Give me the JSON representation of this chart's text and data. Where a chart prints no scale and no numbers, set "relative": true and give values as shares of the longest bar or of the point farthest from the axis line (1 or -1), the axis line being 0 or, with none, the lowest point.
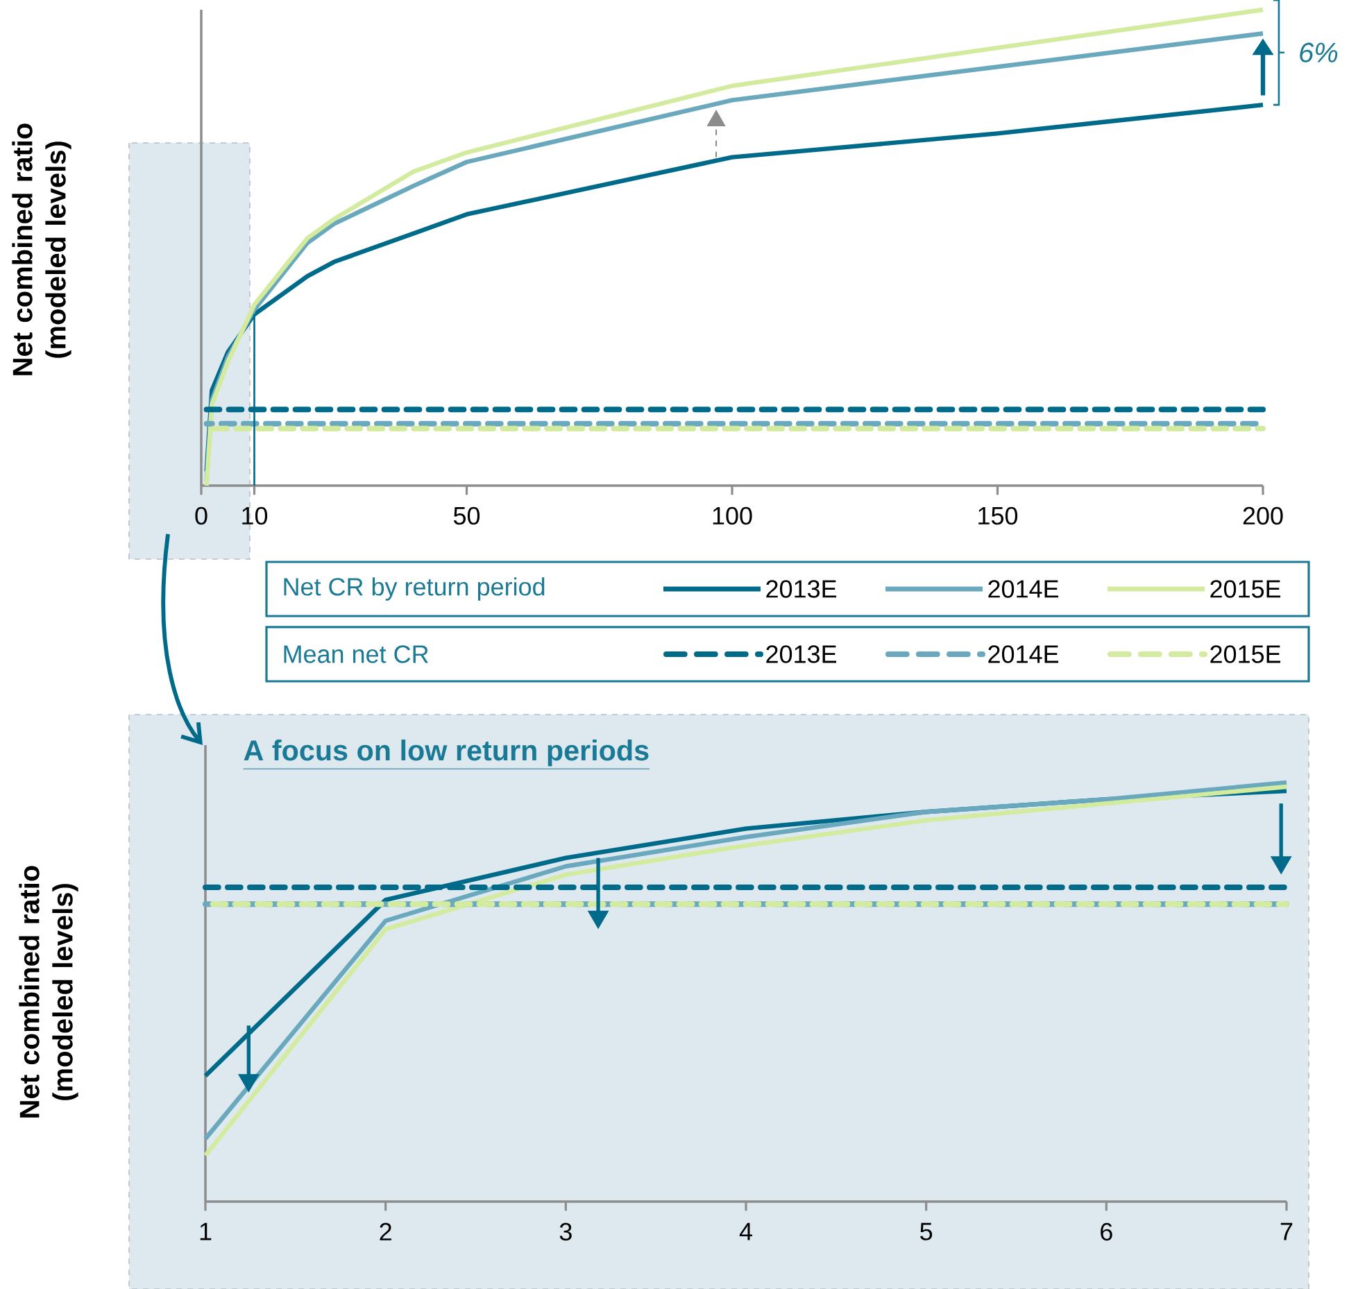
{
  "chart_data": [
    {
      "type": "line",
      "ylabel": "Net combined ratio (modeled levels)",
      "relative": true,
      "x": [
        1,
        2,
        5,
        10,
        20,
        25,
        40,
        50,
        100,
        150,
        200
      ],
      "xlim": [
        0,
        200
      ],
      "xticks": [
        0,
        10,
        50,
        100,
        150,
        200
      ],
      "legend": "bottom",
      "series": [
        {
          "name": "2013E",
          "color": "#006a8a",
          "values": [
            0.03,
            0.2,
            0.28,
            0.36,
            0.44,
            0.47,
            0.53,
            0.57,
            0.69,
            0.74,
            0.8
          ]
        },
        {
          "name": "2014E",
          "color": "#6aa9bd",
          "values": [
            0.01,
            0.18,
            0.27,
            0.37,
            0.51,
            0.55,
            0.63,
            0.68,
            0.81,
            0.88,
            0.95
          ]
        },
        {
          "name": "2015E",
          "color": "#d3eb9f",
          "values": [
            0.0,
            0.17,
            0.26,
            0.38,
            0.52,
            0.56,
            0.66,
            0.7,
            0.84,
            0.92,
            1.0
          ]
        },
        {
          "name": "2013E",
          "color": "#006a8a",
          "line_style": "dashed",
          "x": [
            1,
            200
          ],
          "values": [
            0.16,
            0.16
          ]
        },
        {
          "name": "2014E",
          "color": "#6aa9bd",
          "line_style": "dashed",
          "x": [
            1,
            200
          ],
          "values": [
            0.13,
            0.13
          ]
        },
        {
          "name": "2015E",
          "color": "#d3eb9f",
          "line_style": "dashed",
          "x": [
            1,
            200
          ],
          "values": [
            0.12,
            0.12
          ]
        }
      ],
      "ref_lines": [
        {
          "axis": "x",
          "value": 10,
          "color": "#006a8a"
        }
      ],
      "annotations": [
        "6%",
        "Net CR by return period",
        "Mean net CR"
      ]
    },
    {
      "type": "line",
      "title": "A focus on low return periods",
      "ylabel": "Net combined ratio (modeled levels)",
      "relative": true,
      "x": [
        1,
        2,
        3,
        4,
        5,
        6,
        7
      ],
      "xlim": [
        1,
        7
      ],
      "xticks": [
        1,
        2,
        3,
        4,
        5,
        6,
        7
      ],
      "series": [
        {
          "color": "#006a8a",
          "values": [
            0.3,
            0.72,
            0.82,
            0.89,
            0.93,
            0.96,
            0.98
          ]
        },
        {
          "color": "#6aa9bd",
          "values": [
            0.15,
            0.67,
            0.8,
            0.87,
            0.93,
            0.96,
            1.0
          ]
        },
        {
          "color": "#d3eb9f",
          "values": [
            0.11,
            0.65,
            0.78,
            0.85,
            0.91,
            0.95,
            0.99
          ]
        },
        {
          "color": "#006a8a",
          "line_style": "dashed",
          "x": [
            1,
            7
          ],
          "values": [
            0.75,
            0.75
          ]
        },
        {
          "color": "#6aa9bd",
          "line_style": "dashed",
          "x": [
            1,
            7
          ],
          "values": [
            0.71,
            0.71
          ]
        },
        {
          "color": "#d3eb9f",
          "line_style": "dashed",
          "x": [
            1,
            7
          ],
          "values": [
            0.71,
            0.71
          ]
        }
      ]
    }
  ]
}
